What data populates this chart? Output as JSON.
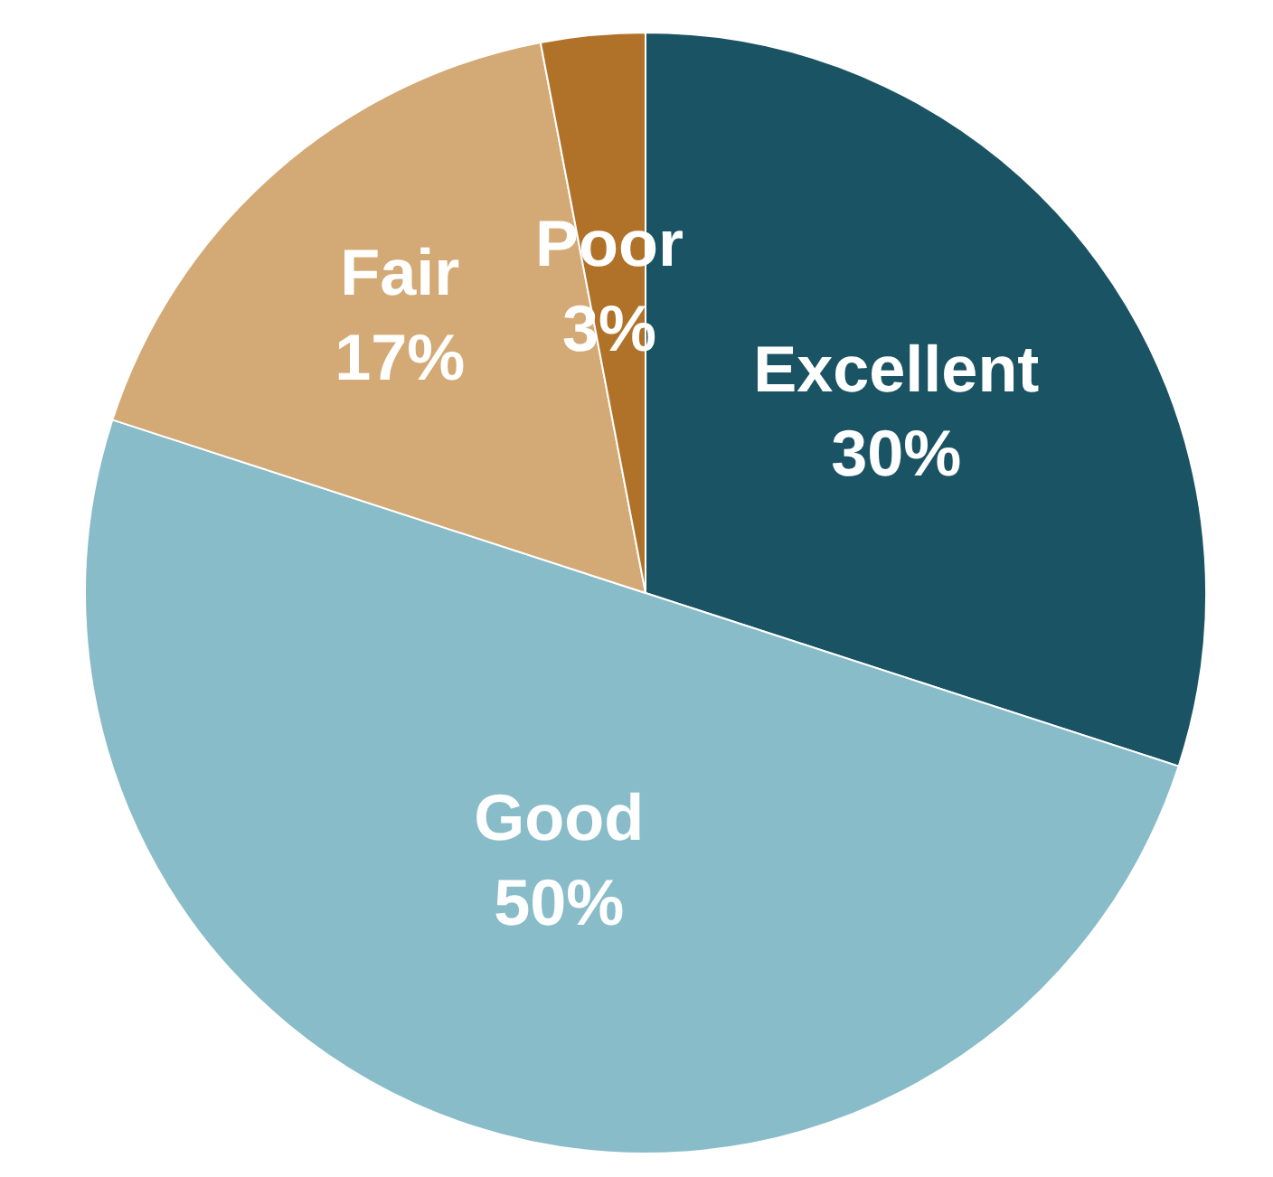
{
  "chart_data": {
    "type": "pie",
    "categories": [
      "Excellent",
      "Good",
      "Fair",
      "Poor"
    ],
    "values": [
      30,
      50,
      17,
      3
    ],
    "value_labels": [
      "30%",
      "50%",
      "17%",
      "3%"
    ],
    "colors": [
      "#1a5363",
      "#88bcc9",
      "#d3a975",
      "#b07228"
    ],
    "legend": false
  }
}
